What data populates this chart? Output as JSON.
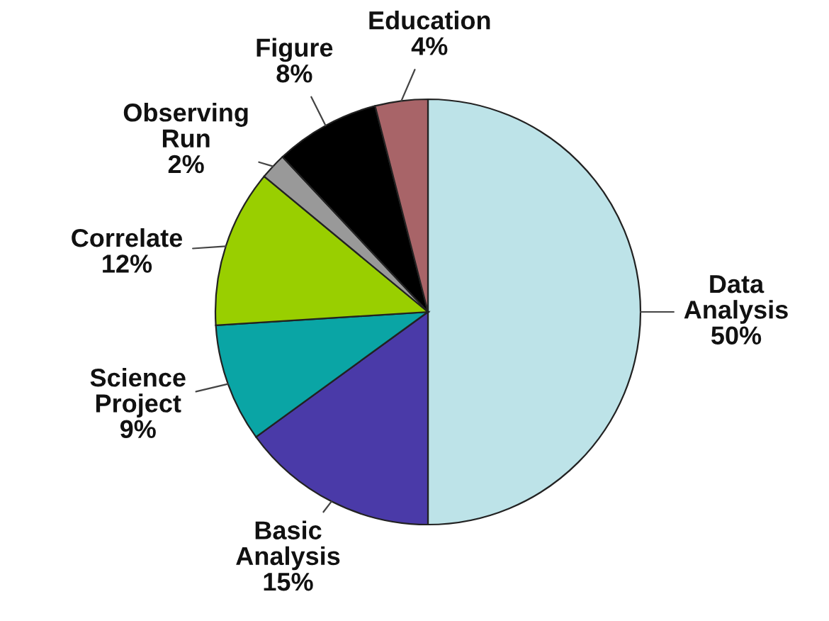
{
  "chart_data": {
    "type": "pie",
    "categories": [
      "Data Analysis",
      "Basic Analysis",
      "Science Project",
      "Correlate",
      "Observing Run",
      "Figure",
      "Education"
    ],
    "values": [
      50,
      15,
      9,
      12,
      2,
      8,
      4
    ],
    "colors": [
      "#bde3e8",
      "#4a3aa8",
      "#0aa5a5",
      "#99cf00",
      "#999999",
      "#000000",
      "#a86468"
    ],
    "value_labels": [
      "50%",
      "15%",
      "9%",
      "12%",
      "2%",
      "8%",
      "4%"
    ]
  }
}
